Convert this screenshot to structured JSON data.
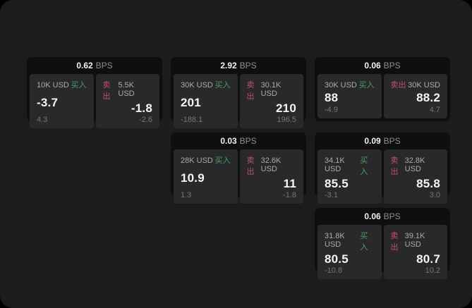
{
  "labels": {
    "bps_unit": "BPS",
    "buy": "买入",
    "sell": "卖出"
  },
  "colors": {
    "outer_background": "#000000",
    "window_background": "#1c1c1e",
    "card_background": "#0f0f10",
    "panel_background": "#29292b",
    "buy_green": "#4a9e63",
    "sell_red": "#bd5264",
    "primary_text": "#f5f5f7",
    "secondary_text": "#8e8e93"
  },
  "cards": [
    {
      "bps": "0.62",
      "buy": {
        "amount": "10K USD",
        "price": "-3.7",
        "delta": "4.3"
      },
      "sell": {
        "amount": "5.5K USD",
        "price": "-1.8",
        "delta": "-2.6"
      }
    },
    {
      "bps": "2.92",
      "buy": {
        "amount": "30K USD",
        "price": "201",
        "delta": "-188.1"
      },
      "sell": {
        "amount": "30.1K USD",
        "price": "210",
        "delta": "196.5"
      }
    },
    {
      "bps": "0.06",
      "buy": {
        "amount": "30K USD",
        "price": "88",
        "delta": "-4.9"
      },
      "sell": {
        "amount": "30K USD",
        "price": "88.2",
        "delta": "4.7"
      }
    },
    {
      "bps": "0.03",
      "buy": {
        "amount": "28K USD",
        "price": "10.9",
        "delta": "1.3"
      },
      "sell": {
        "amount": "32.6K USD",
        "price": "11",
        "delta": "-1.8"
      }
    },
    {
      "bps": "0.09",
      "buy": {
        "amount": "34.1K USD",
        "price": "85.5",
        "delta": "-3.1"
      },
      "sell": {
        "amount": "32.8K USD",
        "price": "85.8",
        "delta": "3.0"
      }
    },
    {
      "bps": "0.06",
      "buy": {
        "amount": "31.8K USD",
        "price": "80.5",
        "delta": "-10.8"
      },
      "sell": {
        "amount": "39.1K USD",
        "price": "80.7",
        "delta": "10.2"
      }
    }
  ]
}
